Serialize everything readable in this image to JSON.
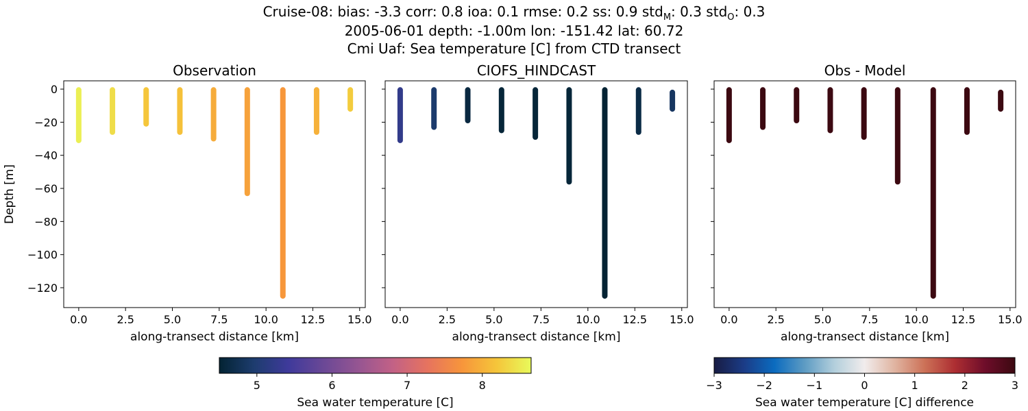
{
  "title": {
    "line1_parts": [
      {
        "t": "Cruise-08: bias: -3.3  corr: 0.8  ioa: 0.1  rmse: 0.2  ss: 0.9  std"
      },
      {
        "t": "M",
        "sub": true
      },
      {
        "t": ": 0.3  std"
      },
      {
        "t": "O",
        "sub": true
      },
      {
        "t": ": 0.3"
      }
    ],
    "line2": "2005-06-01 depth: -1.00m lon: -151.42 lat: 60.72",
    "line3": "Cmi Uaf: Sea temperature [C] from CTD transect"
  },
  "chart_data": [
    {
      "type": "scatter",
      "title": "Observation",
      "xlabel": "along-transect distance [km]",
      "ylabel": "Depth [m]",
      "xlim": [
        -0.8,
        15.3
      ],
      "ylim": [
        -132,
        5
      ],
      "xticks": [
        "0.0",
        "2.5",
        "5.0",
        "7.5",
        "10.0",
        "12.5",
        "15.0"
      ],
      "xtick_values": [
        0,
        2.5,
        5,
        7.5,
        10,
        12.5,
        15
      ],
      "yticks": [
        "0",
        "−20",
        "−40",
        "−60",
        "−80",
        "−100",
        "−120"
      ],
      "ytick_values": [
        0,
        -20,
        -40,
        -60,
        -80,
        -100,
        -120
      ],
      "colormap": "thermal",
      "casts": [
        {
          "x": 0.0,
          "top": -0.5,
          "bottom": -31,
          "value": 8.55
        },
        {
          "x": 1.8,
          "top": -0.5,
          "bottom": -26,
          "value": 8.4
        },
        {
          "x": 3.6,
          "top": -0.5,
          "bottom": -21,
          "value": 8.2
        },
        {
          "x": 5.4,
          "top": -0.5,
          "bottom": -26,
          "value": 8.15
        },
        {
          "x": 7.2,
          "top": -0.5,
          "bottom": -30,
          "value": 7.95
        },
        {
          "x": 9.0,
          "top": -0.5,
          "bottom": -63,
          "value": 7.85
        },
        {
          "x": 10.9,
          "top": -0.5,
          "bottom": -125,
          "value": 7.75
        },
        {
          "x": 12.7,
          "top": -0.5,
          "bottom": -26,
          "value": 8.0
        },
        {
          "x": 14.5,
          "top": -0.5,
          "bottom": -12,
          "value": 8.25
        }
      ]
    },
    {
      "type": "scatter",
      "title": "CIOFS_HINDCAST",
      "xlabel": "along-transect distance [km]",
      "ylabel": "",
      "xlim": [
        -0.8,
        15.3
      ],
      "ylim": [
        -132,
        5
      ],
      "xticks": [
        "0.0",
        "2.5",
        "5.0",
        "7.5",
        "10.0",
        "12.5",
        "15.0"
      ],
      "xtick_values": [
        0,
        2.5,
        5,
        7.5,
        10,
        12.5,
        15
      ],
      "colormap": "thermal",
      "casts": [
        {
          "x": 0.0,
          "top": -0.5,
          "bottom": -31,
          "value": 5.25
        },
        {
          "x": 1.8,
          "top": -0.5,
          "bottom": -23,
          "value": 4.95
        },
        {
          "x": 3.6,
          "top": -0.5,
          "bottom": -19,
          "value": 4.6
        },
        {
          "x": 5.4,
          "top": -0.5,
          "bottom": -25,
          "value": 4.55
        },
        {
          "x": 7.2,
          "top": -0.5,
          "bottom": -29,
          "value": 4.55
        },
        {
          "x": 9.0,
          "top": -0.5,
          "bottom": -56,
          "value": 4.55
        },
        {
          "x": 10.9,
          "top": -0.5,
          "bottom": -125,
          "value": 4.5
        },
        {
          "x": 12.7,
          "top": -0.5,
          "bottom": -26,
          "value": 4.65
        },
        {
          "x": 14.5,
          "top": -2,
          "bottom": -12,
          "value": 4.85
        }
      ]
    },
    {
      "type": "scatter",
      "title": "Obs - Model",
      "xlabel": "along-transect distance [km]",
      "ylabel": "",
      "xlim": [
        -0.8,
        15.3
      ],
      "ylim": [
        -132,
        5
      ],
      "xticks": [
        "0.0",
        "2.5",
        "5.0",
        "7.5",
        "10.0",
        "12.5",
        "15.0"
      ],
      "xtick_values": [
        0,
        2.5,
        5,
        7.5,
        10,
        12.5,
        15
      ],
      "colormap": "balance",
      "casts": [
        {
          "x": 0.0,
          "top": -0.5,
          "bottom": -31,
          "value": 3
        },
        {
          "x": 1.8,
          "top": -0.5,
          "bottom": -23,
          "value": 3
        },
        {
          "x": 3.6,
          "top": -0.5,
          "bottom": -19,
          "value": 3
        },
        {
          "x": 5.4,
          "top": -0.5,
          "bottom": -25,
          "value": 3
        },
        {
          "x": 7.2,
          "top": -0.5,
          "bottom": -29,
          "value": 3
        },
        {
          "x": 9.0,
          "top": -0.5,
          "bottom": -56,
          "value": 3
        },
        {
          "x": 10.9,
          "top": -0.5,
          "bottom": -125,
          "value": 3
        },
        {
          "x": 12.7,
          "top": -0.5,
          "bottom": -26,
          "value": 3
        },
        {
          "x": 14.5,
          "top": -2,
          "bottom": -12,
          "value": 3
        }
      ]
    }
  ],
  "colorbars": [
    {
      "label": "Sea water temperature [C]",
      "colormap": "thermal",
      "range": [
        4.5,
        8.65
      ],
      "ticks": [
        "5",
        "6",
        "7",
        "8"
      ],
      "tick_values": [
        5,
        6,
        7,
        8
      ]
    },
    {
      "label": "Sea water temperature [C] difference",
      "colormap": "balance",
      "range": [
        -3,
        3
      ],
      "ticks": [
        "−3",
        "−2",
        "−1",
        "0",
        "1",
        "2",
        "3"
      ],
      "tick_values": [
        -3,
        -2,
        -1,
        0,
        1,
        2,
        3
      ]
    }
  ],
  "colormaps": {
    "thermal": [
      "#032333",
      "#1d3c6e",
      "#3f3a9b",
      "#6a4896",
      "#955592",
      "#c26186",
      "#e6735f",
      "#f7953b",
      "#f5c53a",
      "#e8fa5b"
    ],
    "balance": [
      "#181c43",
      "#1b3c87",
      "#0b6bbf",
      "#5d9bc3",
      "#b3cfdc",
      "#f1ecec",
      "#e0b4a1",
      "#cc7157",
      "#ad2e32",
      "#6e0d2a",
      "#3c0911"
    ]
  }
}
